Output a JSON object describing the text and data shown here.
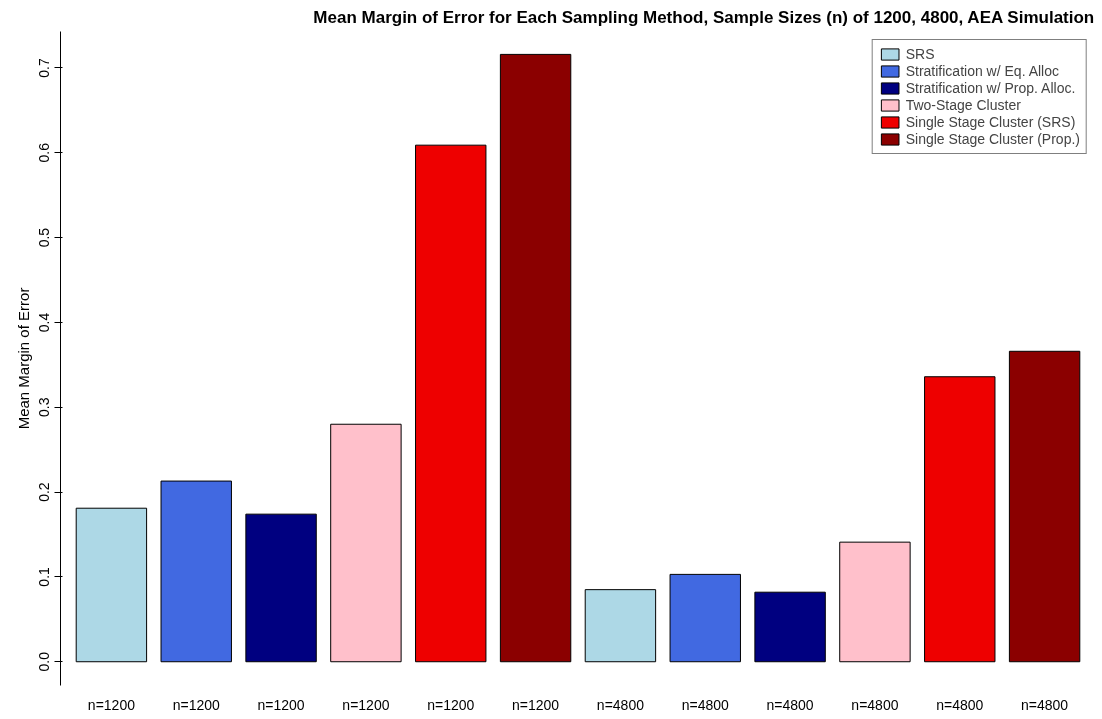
{
  "chart_data": {
    "type": "bar",
    "title": "Mean Margin of Error for Each Sampling Method, Sample Sizes (n) of 1200, 4800, AEA Simulation",
    "ylabel": "Mean Margin of Error",
    "categories": [
      "n=1200",
      "n=1200",
      "n=1200",
      "n=1200",
      "n=1200",
      "n=1200",
      "n=4800",
      "n=4800",
      "n=4800",
      "n=4800",
      "n=4800",
      "n=4800"
    ],
    "series": [
      {
        "name": "SRS",
        "color": "#add8e6",
        "values": [
          0.181,
          null,
          null,
          null,
          null,
          null,
          0.085,
          null,
          null,
          null,
          null,
          null
        ]
      },
      {
        "name": "Stratification w/ Eq. Alloc",
        "color": "#4169e1",
        "values": [
          null,
          0.213,
          null,
          null,
          null,
          null,
          null,
          0.103,
          null,
          null,
          null,
          null
        ]
      },
      {
        "name": "Stratification w/ Prop. Alloc.",
        "color": "#000080",
        "values": [
          null,
          null,
          0.174,
          null,
          null,
          null,
          null,
          null,
          0.082,
          null,
          null,
          null
        ]
      },
      {
        "name": "Two-Stage Cluster",
        "color": "#ffc0cb",
        "values": [
          null,
          null,
          null,
          0.28,
          null,
          null,
          null,
          null,
          null,
          0.141,
          null,
          null
        ]
      },
      {
        "name": "Single Stage Cluster (SRS)",
        "color": "#ee0000",
        "values": [
          null,
          null,
          null,
          null,
          0.609,
          null,
          null,
          null,
          null,
          null,
          0.336,
          null
        ]
      },
      {
        "name": "Single Stage Cluster (Prop.)",
        "color": "#8b0000",
        "values": [
          null,
          null,
          null,
          null,
          null,
          0.716,
          null,
          null,
          null,
          null,
          null,
          0.366
        ]
      }
    ],
    "ylim": [
      -0.028,
      0.743
    ],
    "yticks": [
      {
        "value": 0,
        "label": "0.0"
      },
      0.1,
      0.2,
      0.3,
      0.4,
      0.5,
      0.6,
      0.7
    ],
    "grid": false,
    "legend": "top right"
  }
}
